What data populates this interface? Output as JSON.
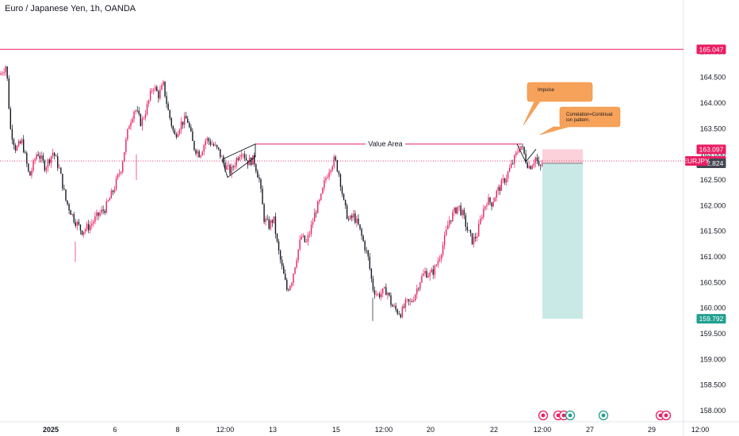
{
  "header": {
    "title": "Euro / Japanese Yen, 1h, OANDA"
  },
  "colors": {
    "up": "#e91e63",
    "down": "#131722",
    "target_zone": "#b2dfdb",
    "stop_zone": "#fcc9d2",
    "note_bg": "#f7a25a",
    "teal": "#22a08f",
    "magenta": "#e91e63"
  },
  "chart_data": {
    "type": "candlestick",
    "symbol": "EURJPY",
    "ylim": [
      157.9,
      165.45
    ],
    "y_ticks": [
      "165.000",
      "164.500",
      "164.000",
      "163.500",
      "163.000",
      "162.500",
      "162.000",
      "161.500",
      "161.000",
      "160.500",
      "160.000",
      "159.500",
      "159.000",
      "158.500",
      "158.000"
    ],
    "x_ticks": [
      "2025",
      "6",
      "8",
      "12:00",
      "13",
      "15",
      "12:00",
      "20",
      "22",
      "12:00",
      "27",
      "29",
      "12:00"
    ],
    "price_path": [
      [
        0,
        164.55
      ],
      [
        8,
        164.75
      ],
      [
        13,
        163.5
      ],
      [
        20,
        163.1
      ],
      [
        28,
        163.25
      ],
      [
        37,
        162.55
      ],
      [
        47,
        163.05
      ],
      [
        57,
        162.75
      ],
      [
        67,
        163.05
      ],
      [
        75,
        162.7
      ],
      [
        83,
        162.1
      ],
      [
        93,
        161.75
      ],
      [
        103,
        161.5
      ],
      [
        113,
        161.6
      ],
      [
        123,
        161.8
      ],
      [
        133,
        161.95
      ],
      [
        143,
        162.3
      ],
      [
        153,
        162.75
      ],
      [
        163,
        163.6
      ],
      [
        170,
        163.9
      ],
      [
        178,
        163.6
      ],
      [
        186,
        163.95
      ],
      [
        193,
        164.35
      ],
      [
        200,
        164.15
      ],
      [
        206,
        164.35
      ],
      [
        212,
        163.85
      ],
      [
        220,
        163.35
      ],
      [
        228,
        163.6
      ],
      [
        236,
        163.7
      ],
      [
        244,
        163.15
      ],
      [
        252,
        163.0
      ],
      [
        260,
        163.3
      ],
      [
        268,
        163.2
      ],
      [
        276,
        163.05
      ],
      [
        283,
        162.8
      ],
      [
        291,
        162.65
      ],
      [
        298,
        162.9
      ],
      [
        305,
        163.1
      ],
      [
        312,
        162.85
      ],
      [
        320,
        162.9
      ],
      [
        327,
        162.5
      ],
      [
        333,
        161.75
      ],
      [
        339,
        161.6
      ],
      [
        345,
        161.75
      ],
      [
        350,
        161.2
      ],
      [
        356,
        160.75
      ],
      [
        362,
        160.35
      ],
      [
        368,
        160.55
      ],
      [
        374,
        161.0
      ],
      [
        380,
        161.4
      ],
      [
        386,
        161.25
      ],
      [
        392,
        161.55
      ],
      [
        398,
        161.9
      ],
      [
        404,
        162.1
      ],
      [
        410,
        162.5
      ],
      [
        416,
        162.75
      ],
      [
        422,
        162.9
      ],
      [
        428,
        162.6
      ],
      [
        434,
        162.0
      ],
      [
        440,
        161.7
      ],
      [
        446,
        161.8
      ],
      [
        452,
        161.6
      ],
      [
        458,
        161.3
      ],
      [
        464,
        161.0
      ],
      [
        470,
        160.4
      ],
      [
        476,
        160.25
      ],
      [
        482,
        160.3
      ],
      [
        488,
        160.35
      ],
      [
        494,
        160.05
      ],
      [
        500,
        159.95
      ],
      [
        506,
        159.9
      ],
      [
        512,
        160.1
      ],
      [
        518,
        160.1
      ],
      [
        524,
        160.3
      ],
      [
        530,
        160.55
      ],
      [
        536,
        160.7
      ],
      [
        542,
        160.65
      ],
      [
        548,
        160.75
      ],
      [
        554,
        161.0
      ],
      [
        560,
        161.3
      ],
      [
        566,
        161.7
      ],
      [
        572,
        161.85
      ],
      [
        578,
        162.0
      ],
      [
        584,
        161.8
      ],
      [
        590,
        161.5
      ],
      [
        596,
        161.3
      ],
      [
        602,
        161.45
      ],
      [
        608,
        161.85
      ],
      [
        614,
        162.1
      ],
      [
        620,
        162.05
      ],
      [
        626,
        162.25
      ],
      [
        632,
        162.4
      ],
      [
        638,
        162.55
      ],
      [
        644,
        162.75
      ],
      [
        650,
        162.95
      ],
      [
        656,
        163.2
      ],
      [
        660,
        163.05
      ],
      [
        664,
        162.85
      ],
      [
        668,
        162.75
      ],
      [
        672,
        162.85
      ],
      [
        676,
        162.95
      ],
      [
        680,
        162.7
      ],
      [
        684,
        162.82
      ]
    ],
    "price_lines": {
      "top_line": 165.047,
      "value_area": 163.2,
      "current": 162.87,
      "ref_line": 162.824
    },
    "position": {
      "entry": 162.824,
      "stop": 163.097,
      "target": 159.792
    },
    "price_labels": {
      "top": "165.047",
      "stop": "163.097",
      "current": "162.870",
      "ref": "162.824",
      "target": "159.792",
      "symbol": "EURJPY"
    },
    "annotations": {
      "value_area": "Value Area",
      "impulse": "Impulse",
      "correlation": "Correlation=Continuation pattern."
    }
  }
}
